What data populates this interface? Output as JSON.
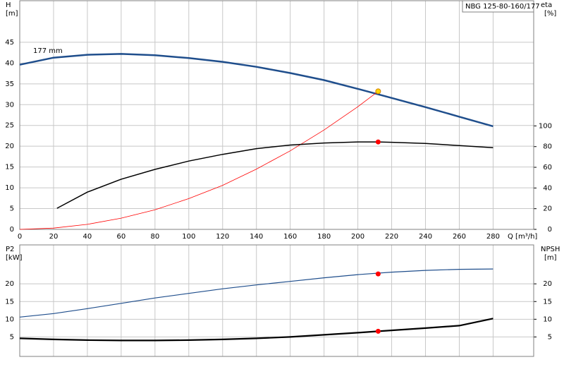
{
  "chart_data": [
    {
      "type": "line",
      "title": "NBG 125-80-160/177",
      "ylabel": "H",
      "yunit": "[m]",
      "y2label": "eta",
      "y2unit": "[%]",
      "xlabel": "Q [m³/h]",
      "annotation": "177 mm",
      "grid": true,
      "xlim": [
        0,
        304
      ],
      "xticks": [
        0,
        20,
        40,
        60,
        80,
        100,
        120,
        140,
        160,
        180,
        200,
        220,
        240,
        260,
        280
      ],
      "ylim": [
        0,
        55
      ],
      "yticks": [
        0,
        5,
        10,
        15,
        20,
        25,
        30,
        35,
        40,
        45
      ],
      "y2lim": [
        0,
        221
      ],
      "y2ticks": [
        0,
        20,
        40,
        60,
        80,
        100
      ],
      "series": [
        {
          "color": "#1f4e8c",
          "width": 2.5,
          "x": [
            0,
            20,
            40,
            60,
            80,
            100,
            120,
            140,
            160,
            180,
            200,
            220,
            240,
            260,
            280
          ],
          "values": [
            39.6,
            41.3,
            42.0,
            42.2,
            41.9,
            41.2,
            40.3,
            39.1,
            37.6,
            35.9,
            33.8,
            31.6,
            29.4,
            27.1,
            24.8
          ]
        },
        {
          "color": "#ff0000",
          "width": 0.8,
          "x": [
            0,
            20,
            40,
            60,
            80,
            100,
            120,
            140,
            160,
            180,
            200,
            212
          ],
          "values": [
            0,
            0.3,
            1.2,
            2.7,
            4.7,
            7.4,
            10.6,
            14.5,
            18.9,
            23.9,
            29.5,
            33.2
          ]
        },
        {
          "color": "#000000",
          "width": 1.5,
          "axis": "y2",
          "x": [
            22,
            40,
            60,
            80,
            100,
            120,
            140,
            160,
            180,
            200,
            212,
            220,
            240,
            260,
            280
          ],
          "values": [
            20.4,
            36,
            48.5,
            58,
            66,
            72.5,
            78,
            81.5,
            83.5,
            84.5,
            84.5,
            84.2,
            83,
            81,
            79
          ]
        }
      ],
      "points": [
        {
          "x": 212,
          "y": 33.2,
          "color": "#ffd700"
        },
        {
          "x": 212,
          "y": 84.5,
          "axis": "y2",
          "color": "#ff0000"
        }
      ]
    },
    {
      "type": "line",
      "ylabel": "P2",
      "yunit": "[kW]",
      "y2label": "NPSH",
      "y2unit": "[m]",
      "grid": true,
      "xlim": [
        0,
        304
      ],
      "xticks": [
        0,
        20,
        40,
        60,
        80,
        100,
        120,
        140,
        160,
        180,
        200,
        220,
        240,
        260,
        280
      ],
      "ylim": [
        -0.5,
        31
      ],
      "yticks": [
        5,
        10,
        15,
        20
      ],
      "y2lim": [
        -0.5,
        31
      ],
      "y2ticks": [
        5,
        10,
        15,
        20
      ],
      "series": [
        {
          "color": "#1f4e8c",
          "width": 1.2,
          "x": [
            0,
            20,
            40,
            60,
            80,
            100,
            120,
            140,
            160,
            180,
            200,
            220,
            240,
            260,
            280
          ],
          "values": [
            10.6,
            11.6,
            13,
            14.5,
            16,
            17.3,
            18.6,
            19.7,
            20.7,
            21.7,
            22.6,
            23.3,
            23.8,
            24.1,
            24.2
          ]
        },
        {
          "color": "#000000",
          "width": 2.2,
          "axis": "y2",
          "x": [
            0,
            20,
            40,
            60,
            80,
            100,
            120,
            140,
            160,
            180,
            200,
            212,
            240,
            260,
            280
          ],
          "values": [
            4.6,
            4.3,
            4.1,
            4.0,
            4.0,
            4.1,
            4.3,
            4.6,
            5.0,
            5.6,
            6.2,
            6.6,
            7.5,
            8.2,
            10.2
          ]
        }
      ],
      "points": [
        {
          "x": 212,
          "y": 22.8,
          "color": "#ff0000"
        },
        {
          "x": 212,
          "y": 6.6,
          "axis": "y2",
          "color": "#ff0000"
        }
      ]
    }
  ]
}
